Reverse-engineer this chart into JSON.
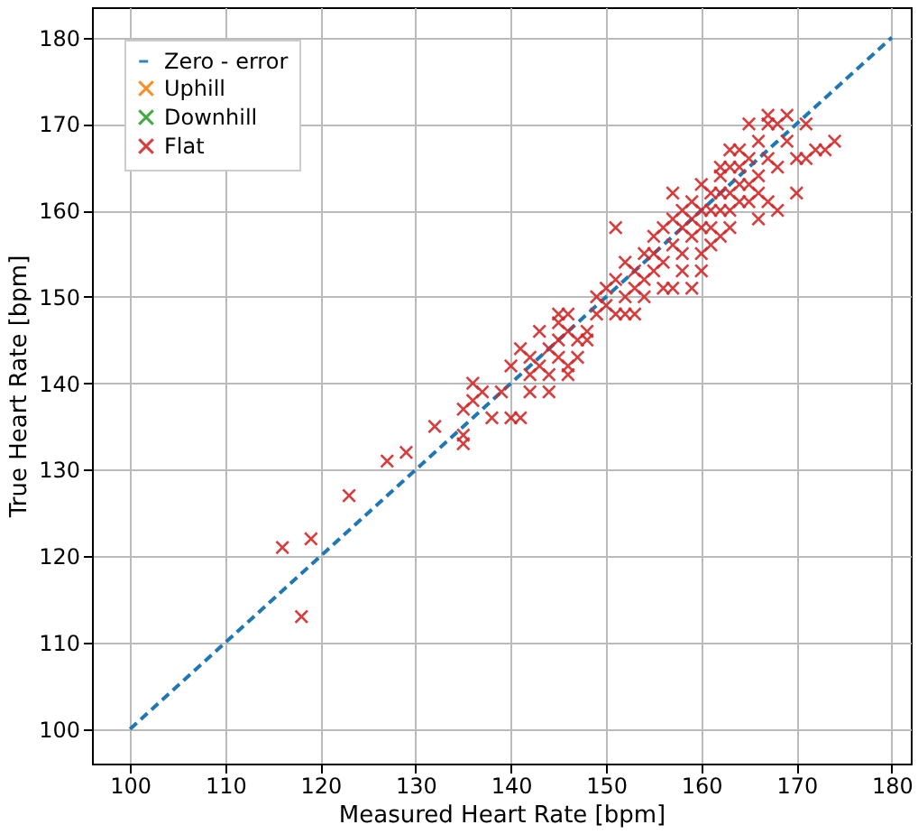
{
  "chart_data": {
    "type": "scatter",
    "xlabel": "Measured Heart Rate [bpm]",
    "ylabel": "True Heart Rate [bpm]",
    "xlim": [
      96,
      182
    ],
    "ylim": [
      96,
      183.5
    ],
    "xticks": [
      100,
      110,
      120,
      130,
      140,
      150,
      160,
      170,
      180
    ],
    "yticks": [
      100,
      110,
      120,
      130,
      140,
      150,
      160,
      170,
      180
    ],
    "grid": true,
    "legend": "top left",
    "marker": "cross",
    "series": [
      {
        "name": "Zero - error",
        "type": "line",
        "marker": "none",
        "line_style": "dashed",
        "color": "#1f77b4",
        "x": [
          100,
          180
        ],
        "values": [
          100,
          180
        ]
      },
      {
        "name": "Uphill",
        "color": "#ff7f0e"
      },
      {
        "name": "Downhill",
        "color": "#2ca02c"
      },
      {
        "name": "Flat",
        "color": "#d62728",
        "x": [
          116,
          118,
          119,
          123,
          127,
          129,
          132,
          135,
          135,
          135,
          136,
          136,
          137,
          138,
          139,
          140,
          140,
          141,
          141,
          142,
          142,
          142,
          143,
          143,
          144,
          144,
          145,
          145,
          145,
          146,
          146,
          146,
          147,
          147,
          148,
          149,
          149,
          150,
          150,
          151,
          151,
          152,
          152,
          152,
          153,
          153,
          154,
          154,
          155,
          155,
          156,
          156,
          157,
          157,
          157,
          158,
          158,
          158,
          159,
          159,
          160,
          160,
          160,
          161,
          161,
          161,
          162,
          162,
          163,
          163,
          164,
          164,
          164,
          165,
          165,
          166,
          166,
          167,
          167,
          168,
          168,
          169,
          169,
          170,
          171,
          172,
          173,
          174,
          167,
          165,
          163,
          162,
          160,
          159,
          156,
          154,
          153,
          151,
          148,
          144,
          145,
          146,
          155,
          157,
          158,
          159,
          160,
          161,
          162,
          163,
          164,
          166,
          166,
          167,
          168,
          170,
          171,
          165,
          163,
          162
        ],
        "values": [
          121,
          113,
          122,
          127,
          131,
          132,
          135,
          133,
          134,
          137,
          140,
          138,
          139,
          136,
          139,
          136,
          142,
          136,
          144,
          143,
          141,
          139,
          146,
          142,
          139,
          144,
          143,
          145,
          147,
          142,
          148,
          146,
          145,
          143,
          145,
          148,
          150,
          151,
          149,
          148,
          152,
          150,
          154,
          148,
          153,
          151,
          155,
          152,
          157,
          153,
          158,
          154,
          162,
          156,
          151,
          158,
          155,
          153,
          161,
          157,
          160,
          155,
          163,
          158,
          162,
          156,
          160,
          164,
          162,
          158,
          165,
          161,
          167,
          166,
          163,
          168,
          162,
          170,
          161,
          165,
          160,
          171,
          168,
          162,
          170,
          167,
          167,
          168,
          171,
          170,
          167,
          157,
          153,
          151,
          151,
          150,
          148,
          158,
          146,
          141,
          148,
          141,
          155,
          159,
          160,
          159,
          158,
          160,
          162,
          160,
          163,
          164,
          159,
          166,
          170,
          166,
          166,
          161,
          165,
          165
        ]
      }
    ]
  }
}
